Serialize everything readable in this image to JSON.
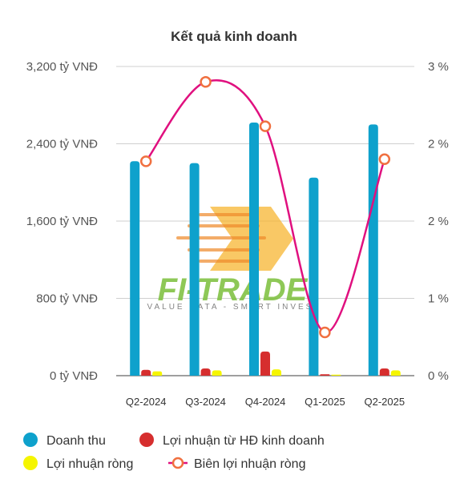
{
  "chart_data": {
    "type": "bar",
    "title": "Kết quả kinh doanh",
    "categories": [
      "Q2-2024",
      "Q3-2024",
      "Q4-2024",
      "Q1-2025",
      "Q2-2025"
    ],
    "y_left": {
      "ticks": [
        "0 tỷ VNĐ",
        "800 tỷ VNĐ",
        "1,600 tỷ VNĐ",
        "2,400 tỷ VNĐ",
        "3,200 tỷ VNĐ"
      ],
      "ylim": [
        0,
        3200
      ]
    },
    "y_right": {
      "ticks": [
        "0 %",
        "1 %",
        "2 %",
        "2 %",
        "3 %"
      ],
      "ylim": [
        0,
        3
      ]
    },
    "series": [
      {
        "name": "Doanh thu",
        "type": "bar",
        "axis": "left",
        "color": "#0ea1cc",
        "values": [
          2220,
          2200,
          2620,
          2050,
          2600
        ]
      },
      {
        "name": "Lợi nhuận từ HĐ kinh doanh",
        "type": "bar",
        "axis": "left",
        "color": "#d62e2e",
        "values": [
          60,
          75,
          250,
          15,
          75
        ]
      },
      {
        "name": "Lợi nhuận ròng",
        "type": "bar",
        "axis": "left",
        "color": "#f5f500",
        "values": [
          45,
          55,
          65,
          10,
          55
        ]
      },
      {
        "name": "Biên lợi nhuận ròng",
        "type": "line",
        "axis": "right",
        "color": "#e0107f",
        "marker_color": "#f07040",
        "values": [
          2.08,
          2.85,
          2.42,
          0.42,
          2.1
        ]
      }
    ],
    "grid": true,
    "legend_position": "bottom",
    "watermark": {
      "text": "FI-TRADE",
      "subtitle": "VALUE DATA - SMART INVEST"
    }
  }
}
